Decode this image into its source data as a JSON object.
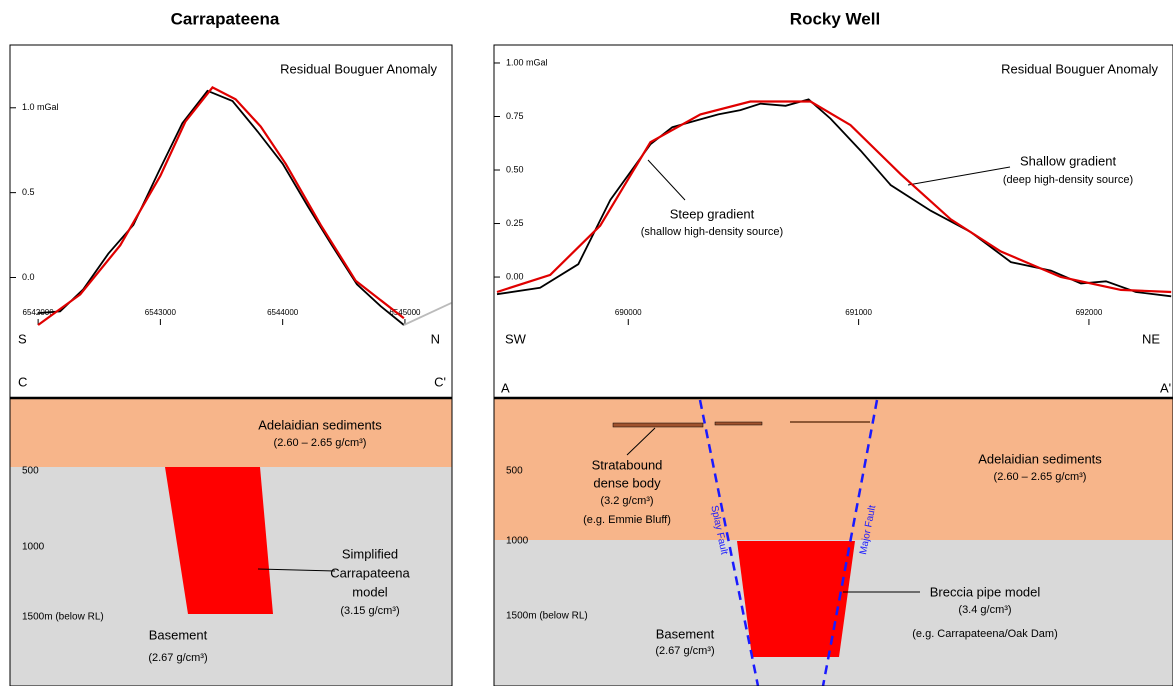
{
  "chart_data": [
    {
      "type": "line",
      "title": "Carrapateena",
      "annotation": "Residual Bouguer Anomaly",
      "xlim": [
        6541770,
        6545385
      ],
      "ylim": [
        -0.28,
        1.37
      ],
      "xticks": [
        6542000,
        6543000,
        6544000,
        6545000
      ],
      "yticks": [
        {
          "value": 0,
          "label": "0.0"
        },
        0.5,
        {
          "value": 1,
          "label": "1.0 mGal"
        }
      ],
      "series": [
        {
          "color": "#000000",
          "x": [
            6542000,
            6542180,
            6542369,
            6542574,
            6542779,
            6542984,
            6543180,
            6543385,
            6543590,
            6543795,
            6544000,
            6544205,
            6544402,
            6544607,
            6544803,
            6544992
          ],
          "values": [
            -0.21,
            -0.2,
            -0.07,
            0.14,
            0.31,
            0.62,
            0.91,
            1.1,
            1.04,
            0.86,
            0.67,
            0.42,
            0.19,
            -0.04,
            -0.17,
            -0.28
          ]
        },
        {
          "color": "#bbbbbb",
          "x": [
            6544992,
            6545380
          ],
          "values": [
            -0.28,
            -0.15
          ]
        },
        {
          "color": "#e00000",
          "x": [
            6542000,
            6542344,
            6542672,
            6543000,
            6543205,
            6543426,
            6543615,
            6543820,
            6544025,
            6544311,
            6544598,
            6544992
          ],
          "values": [
            -0.28,
            -0.1,
            0.19,
            0.6,
            0.92,
            1.12,
            1.05,
            0.89,
            0.67,
            0.31,
            -0.02,
            -0.24
          ]
        }
      ],
      "section": {
        "left_dir": "S",
        "right_dir": "N",
        "left_end": "C",
        "right_end": "C'",
        "depths": [
          "500",
          "1000",
          "1500m (below RL)"
        ],
        "sediments": "Adelaidian sediments",
        "sediments_density": "(2.60 – 2.65 g/cm³)",
        "model": [
          "Simplified",
          "Carrapateena",
          "model",
          "(3.15 g/cm³)"
        ],
        "basement": "Basement",
        "basement_density": "(2.67 g/cm³)"
      }
    },
    {
      "type": "line",
      "title": "Rocky Well",
      "annotation": "Residual Bouguer Anomaly",
      "xlim": [
        689417,
        692365
      ],
      "ylim": [
        -0.224,
        1.084
      ],
      "xticks": [
        690000,
        691000,
        692000
      ],
      "yticks": [
        {
          "value": 0,
          "label": "0.00"
        },
        0.25,
        {
          "value": 0.5,
          "label": "0.50"
        },
        0.75,
        {
          "value": 1,
          "label": "1.00 mGal"
        }
      ],
      "notes": [
        "Steep gradient",
        "(shallow high-density source)",
        "Shallow gradient",
        "(deep high-density source)"
      ],
      "series": [
        {
          "color": "#000000",
          "x": [
            689430,
            689617,
            689783,
            689922,
            690096,
            690191,
            690291,
            690391,
            690487,
            690574,
            690683,
            690783,
            690878,
            691009,
            691139,
            691313,
            691487,
            691661,
            691835,
            691965,
            692074,
            692204,
            692357
          ],
          "values": [
            -0.08,
            -0.05,
            0.06,
            0.36,
            0.62,
            0.7,
            0.73,
            0.76,
            0.78,
            0.81,
            0.8,
            0.83,
            0.74,
            0.59,
            0.43,
            0.31,
            0.21,
            0.07,
            0.03,
            -0.03,
            -0.02,
            -0.07,
            -0.09
          ]
        },
        {
          "color": "#e00000",
          "x": [
            689430,
            689661,
            689878,
            690096,
            690313,
            690530,
            690791,
            690965,
            691183,
            691400,
            691617,
            691878,
            692139,
            692357
          ],
          "values": [
            -0.07,
            0.01,
            0.24,
            0.63,
            0.76,
            0.82,
            0.82,
            0.71,
            0.48,
            0.27,
            0.12,
            0,
            -0.06,
            -0.07
          ]
        }
      ],
      "section": {
        "left_dir": "SW",
        "right_dir": "NE",
        "left_end": "A",
        "right_end": "A'",
        "depths": [
          "500",
          "1000",
          "1500m (below RL)"
        ],
        "sediments": "Adelaidian sediments",
        "sediments_density": "(2.60 – 2.65 g/cm³)",
        "strata": [
          "Stratabound",
          "dense body",
          "(3.2 g/cm³)",
          "(e.g. Emmie Bluff)"
        ],
        "faults": [
          "Splay Fault",
          "Major Fault"
        ],
        "model": [
          "Breccia pipe model",
          "(3.4 g/cm³)",
          "(e.g. Carrapateena/Oak Dam)"
        ],
        "basement": "Basement",
        "basement_density": "(2.67 g/cm³)"
      }
    }
  ]
}
